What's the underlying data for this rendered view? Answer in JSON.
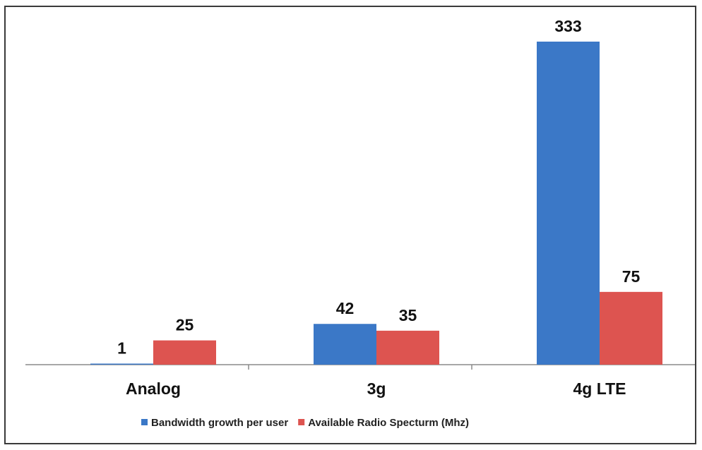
{
  "chart_data": {
    "type": "bar",
    "title": "",
    "xlabel": "",
    "ylabel": "",
    "categories": [
      "Analog",
      "3g",
      "4g LTE"
    ],
    "series": [
      {
        "name": "Bandwidth growth per user",
        "color": "#3b78c7",
        "values": [
          1,
          42,
          333
        ],
        "labels": [
          "1",
          "42",
          "333"
        ]
      },
      {
        "name": "Available Radio Specturm (Mhz)",
        "color": "#dd5450",
        "values": [
          25,
          35,
          75
        ],
        "labels": [
          "25",
          "35",
          "75"
        ]
      }
    ],
    "ylim": [
      0,
      333
    ],
    "grid": false,
    "legend_position": "bottom"
  }
}
